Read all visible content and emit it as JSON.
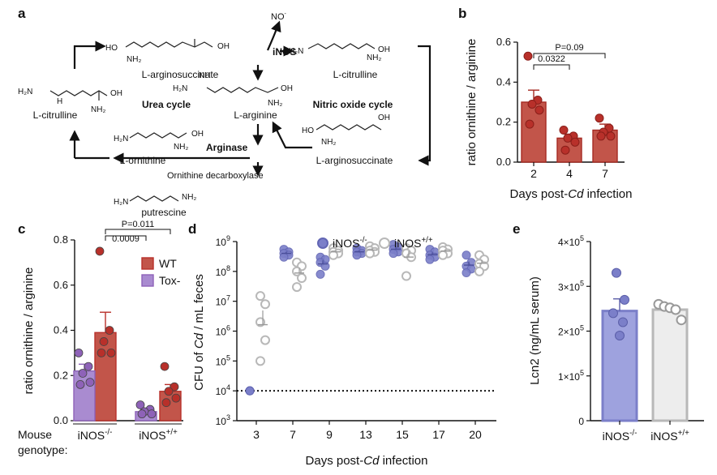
{
  "panels": {
    "a": {
      "label": "a",
      "molecules": {
        "citrulline_left": "L-citrulline",
        "arginosuccinate_top": "L-arginosuccinate",
        "citrulline_right": "L-citrulline",
        "arginine": "L-arginine",
        "ornithine": "L-ornithine",
        "arginosuccinate_right": "L-arginosuccinate",
        "putrescine": "putrescine"
      },
      "cycle_labels": {
        "urea": "Urea cycle",
        "nitric": "Nitric oxide cycle"
      },
      "enzymes": {
        "inos": "iNOS",
        "arginase": "Arginase",
        "odc": "Ornithine decarboxylase"
      },
      "no": "NO",
      "no_sup": "-",
      "colors": {
        "inos": "#d62728",
        "arginase": "#8e62b8"
      }
    },
    "b": {
      "label": "b"
    },
    "c": {
      "label": "c"
    },
    "d": {
      "label": "d"
    },
    "e": {
      "label": "e"
    }
  },
  "chart_data": [
    {
      "panel": "b",
      "type": "bar",
      "categories": [
        "2",
        "4",
        "7"
      ],
      "values": [
        0.3,
        0.12,
        0.16
      ],
      "errors": [
        0.06,
        0.02,
        0.03
      ],
      "points": [
        [
          0.53,
          0.31,
          0.29,
          0.26,
          0.19
        ],
        [
          0.16,
          0.13,
          0.12,
          0.1,
          0.06
        ],
        [
          0.22,
          0.17,
          0.15,
          0.13,
          0.13
        ]
      ],
      "xlabel_prefix": "Days post-",
      "xlabel_italic": "Cd",
      "xlabel_suffix": " infection",
      "ylabel": "ratio ornithine / arginine",
      "ylim": [
        0,
        0.6
      ],
      "yticks": [
        "0.0",
        "0.2",
        "0.4",
        "0.6"
      ],
      "annotations": [
        {
          "from": "2",
          "to": "4",
          "text": "0.0322"
        },
        {
          "from": "2",
          "to": "7",
          "text": "P=0.09"
        }
      ],
      "color": "#b8302a"
    },
    {
      "panel": "c",
      "type": "bar",
      "groups": [
        "iNOS",
        "iNOS"
      ],
      "group_sup": [
        "-/-",
        "+/+"
      ],
      "row_title_1": "Mouse",
      "row_title_2": "genotype:",
      "series": [
        {
          "name": "WT",
          "values": [
            0.39,
            0.13
          ],
          "errors": [
            0.09,
            0.03
          ],
          "points": [
            [
              0.75,
              0.4,
              0.35,
              0.3,
              0.3
            ],
            [
              0.24,
              0.15,
              0.13,
              0.1,
              0.08
            ]
          ],
          "color": "#b8302a"
        },
        {
          "name": "Tox-",
          "values": [
            0.22,
            0.04
          ],
          "errors": [
            0.03,
            0.01
          ],
          "points": [
            [
              0.3,
              0.24,
              0.21,
              0.17,
              0.16
            ],
            [
              0.07,
              0.05,
              0.04,
              0.03,
              0.03
            ]
          ],
          "color": "#8e62b8"
        }
      ],
      "ylabel": "ratio ornithine / arginine",
      "ylim": [
        0,
        0.8
      ],
      "yticks": [
        "0.0",
        "0.2",
        "0.4",
        "0.6",
        "0.8"
      ],
      "annotations": [
        {
          "text": "0.0009"
        },
        {
          "text": "P=0.011"
        }
      ],
      "legend": "top-right"
    },
    {
      "panel": "d",
      "type": "scatter",
      "x": [
        "3",
        "7",
        "9",
        "13",
        "15",
        "17",
        "20"
      ],
      "yscale": "log",
      "ylim": [
        1000,
        1000000000
      ],
      "ytick_base": "10",
      "ytick_exps": [
        "3",
        "4",
        "5",
        "6",
        "7",
        "8",
        "9"
      ],
      "threshold": 10000,
      "xlabel_prefix": "Days post-",
      "xlabel_italic": "Cd",
      "xlabel_suffix": " infection",
      "ylabel_prefix": "CFU of ",
      "ylabel_italic": "Cd",
      "ylabel_suffix": " / mL feces",
      "legend": "top",
      "series": [
        {
          "name": "iNOS",
          "sup": "-/-",
          "color": "#7b7fc9",
          "points": [
            [
              10000,
              10000,
              10000,
              10000,
              10000
            ],
            [
              550000000,
              450000000,
              400000000,
              350000000,
              300000000
            ],
            [
              300000000,
              250000000,
              200000000,
              150000000,
              80000000
            ],
            [
              600000000,
              500000000,
              450000000,
              400000000,
              350000000
            ],
            [
              800000000,
              650000000,
              550000000,
              450000000,
              400000000
            ],
            [
              550000000,
              450000000,
              350000000,
              300000000,
              250000000
            ],
            [
              350000000,
              200000000,
              150000000,
              120000000,
              90000000
            ]
          ]
        },
        {
          "name": "iNOS",
          "sup": "+/+",
          "color": "#b8b8b8",
          "points": [
            [
              15000000,
              8000000,
              2000000,
              500000,
              100000
            ],
            [
              200000000,
              150000000,
              100000000,
              60000000,
              30000000
            ],
            [
              600000000,
              500000000,
              450000000,
              400000000,
              350000000
            ],
            [
              700000000,
              600000000,
              500000000,
              450000000,
              400000000
            ],
            [
              600000000,
              500000000,
              400000000,
              300000000,
              70000000
            ],
            [
              650000000,
              550000000,
              500000000,
              400000000,
              350000000
            ],
            [
              350000000,
              250000000,
              180000000,
              150000000,
              100000000
            ]
          ]
        }
      ]
    },
    {
      "panel": "e",
      "type": "bar",
      "categories": [
        "iNOS",
        "iNOS"
      ],
      "cat_sup": [
        "-/-",
        "+/+"
      ],
      "values": [
        245000,
        248000
      ],
      "errors": [
        27000,
        6000
      ],
      "points": [
        [
          330000,
          270000,
          240000,
          220000,
          190000
        ],
        [
          260000,
          255000,
          252000,
          248000,
          225000
        ]
      ],
      "colors": [
        "#7b7fc9",
        "#b8b8b8"
      ],
      "fills": [
        "#9ea2de",
        "#ededed"
      ],
      "ylabel": "Lcn2 (ng/mL serum)",
      "ylim": [
        0,
        400000
      ],
      "yticks": [
        {
          "m": "0",
          "e": ""
        },
        {
          "m": "1×10",
          "e": "5"
        },
        {
          "m": "2×10",
          "e": "5"
        },
        {
          "m": "3×10",
          "e": "5"
        },
        {
          "m": "4×10",
          "e": "5"
        }
      ]
    }
  ]
}
